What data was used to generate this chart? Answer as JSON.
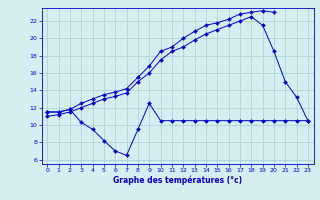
{
  "title": "",
  "xlabel": "Graphe des températures (°c)",
  "bg_color": "#d6eef2",
  "grid_color": "#aacccc",
  "line_color": "#0000cc",
  "xlim": [
    -0.5,
    23.5
  ],
  "ylim": [
    5.5,
    23.5
  ],
  "yticks": [
    6,
    8,
    10,
    12,
    14,
    16,
    18,
    20,
    22
  ],
  "xticks": [
    0,
    1,
    2,
    3,
    4,
    5,
    6,
    7,
    8,
    9,
    10,
    11,
    12,
    13,
    14,
    15,
    16,
    17,
    18,
    19,
    20,
    21,
    22,
    23
  ],
  "line1_x": [
    0,
    1,
    2,
    3,
    4,
    5,
    6,
    7,
    8,
    9,
    10,
    11,
    12,
    13,
    14,
    15,
    16,
    17,
    18,
    19,
    20
  ],
  "line1_y": [
    11.5,
    11.5,
    11.8,
    12.5,
    13.0,
    13.5,
    13.8,
    14.2,
    15.5,
    16.8,
    18.5,
    19.0,
    20.0,
    20.8,
    21.5,
    21.8,
    22.2,
    22.8,
    23.0,
    23.2,
    23.0
  ],
  "line2_x": [
    0,
    1,
    2,
    3,
    4,
    5,
    6,
    7,
    8,
    9,
    10,
    11,
    12,
    13,
    14,
    15,
    16,
    17,
    18,
    19,
    20,
    21,
    22,
    23
  ],
  "line2_y": [
    11.0,
    11.2,
    11.5,
    12.0,
    12.5,
    13.0,
    13.3,
    13.7,
    15.0,
    16.0,
    17.5,
    18.5,
    19.0,
    19.8,
    20.5,
    21.0,
    21.5,
    22.0,
    22.5,
    21.5,
    18.5,
    15.0,
    13.2,
    10.5
  ],
  "line3_x": [
    0,
    1,
    2,
    3,
    4,
    5,
    6,
    7,
    8,
    9,
    10,
    11,
    12,
    13,
    14,
    15,
    16,
    17,
    18,
    19,
    20,
    21,
    22,
    23
  ],
  "line3_y": [
    11.5,
    11.5,
    11.8,
    10.3,
    9.5,
    8.2,
    7.0,
    6.5,
    9.5,
    12.5,
    10.5,
    10.5,
    10.5,
    10.5,
    10.5,
    10.5,
    10.5,
    10.5,
    10.5,
    10.5,
    10.5,
    10.5,
    10.5,
    10.5
  ],
  "marker_size": 2.0,
  "linewidth": 0.7,
  "tick_fontsize": 4.5,
  "xlabel_fontsize": 5.5
}
